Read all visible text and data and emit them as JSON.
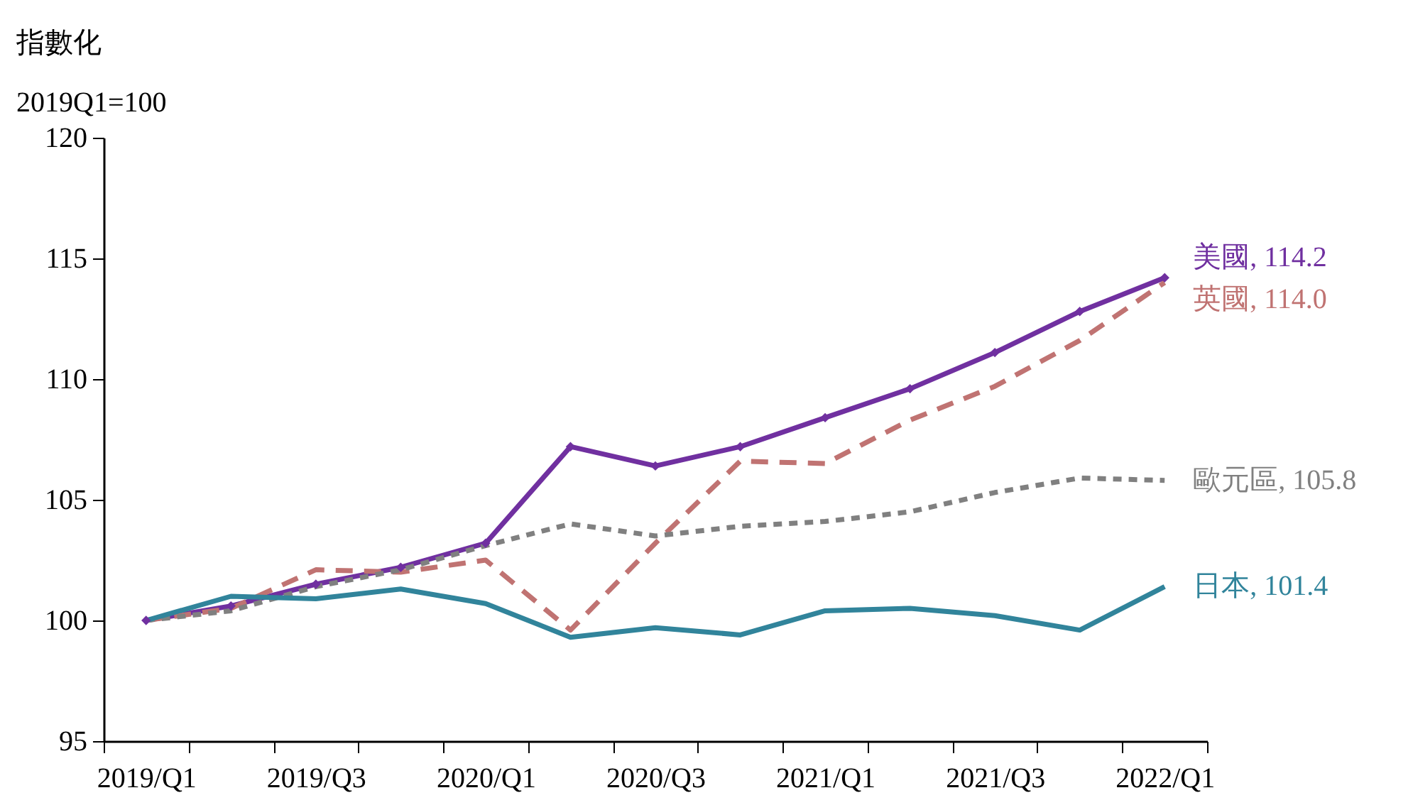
{
  "chart_data": {
    "type": "line",
    "ylabel": "指數化\n2019Q1=100",
    "categories": [
      "2019/Q1",
      null,
      "2019/Q3",
      null,
      "2020/Q1",
      null,
      "2020/Q3",
      null,
      "2021/Q1",
      null,
      "2021/Q3",
      null,
      "2022/Q1"
    ],
    "series": [
      {
        "color": "#7030a0",
        "marker": "diamond",
        "line_style": "solid",
        "values": [
          100,
          100.6,
          101.5,
          102.2,
          103.2,
          107.2,
          106.4,
          107.2,
          108.4,
          109.6,
          111.1,
          112.8,
          114.2
        ]
      },
      {
        "color": "#c07372",
        "marker": "none",
        "line_style": "dashed",
        "values": [
          100,
          100.5,
          102.1,
          102.0,
          102.5,
          99.6,
          103.2,
          106.6,
          106.5,
          108.3,
          109.7,
          111.6,
          114.0
        ]
      },
      {
        "color": "#808080",
        "marker": "none",
        "line_style": "dotted",
        "values": [
          100,
          100.4,
          101.4,
          102.1,
          103.1,
          104.0,
          103.5,
          103.9,
          104.1,
          104.5,
          105.3,
          105.9,
          105.8
        ]
      },
      {
        "color": "#31849b",
        "marker": "none",
        "line_style": "solid",
        "values": [
          100,
          101.0,
          100.9,
          101.3,
          100.7,
          99.3,
          99.7,
          99.4,
          100.4,
          100.5,
          100.2,
          99.6,
          101.4
        ]
      }
    ],
    "annotations": [
      {
        "text": "美國, 114.2",
        "x": "2022/Q1",
        "y": 114.2
      },
      {
        "text": "英國, 114.0",
        "x": "2022/Q1",
        "y": 114.0
      },
      {
        "text": "歐元區, 105.8",
        "x": "2022/Q1",
        "y": 105.8
      },
      {
        "text": "日本, 101.4",
        "x": "2022/Q1",
        "y": 101.4
      }
    ],
    "ylim": [
      95,
      120
    ],
    "yticks": [
      95,
      100,
      105,
      110,
      115,
      120
    ],
    "grid": false
  }
}
